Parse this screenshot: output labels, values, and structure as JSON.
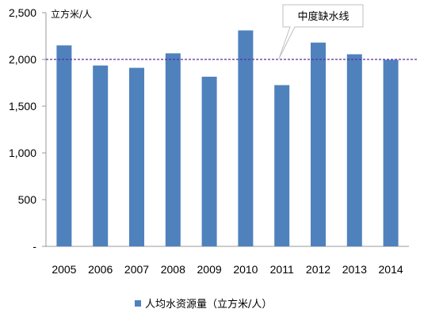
{
  "chart_data": {
    "type": "bar",
    "categories": [
      "2005",
      "2006",
      "2007",
      "2008",
      "2009",
      "2010",
      "2011",
      "2012",
      "2013",
      "2014"
    ],
    "series": [
      {
        "name": "人均水资源量（立方米/人）",
        "values": [
          2150,
          1935,
          1910,
          2065,
          1815,
          2310,
          1725,
          2180,
          2055,
          1995
        ],
        "color": "#4f81bd"
      }
    ],
    "ylim": [
      0,
      2500
    ],
    "yticks": [
      0,
      500,
      1000,
      1500,
      2000,
      2500
    ],
    "ytick_labels": [
      "-",
      "500",
      "1,000",
      "1,500",
      "2,000",
      "2,500"
    ],
    "unit_label": "立方米/人",
    "reference_line": {
      "label": "中度缺水线",
      "value": 2000,
      "color": "#5b2c9a",
      "style": "dashed"
    },
    "legend": {
      "position": "bottom",
      "label": "人均水资源量（立方米/人）"
    },
    "grid": false
  }
}
